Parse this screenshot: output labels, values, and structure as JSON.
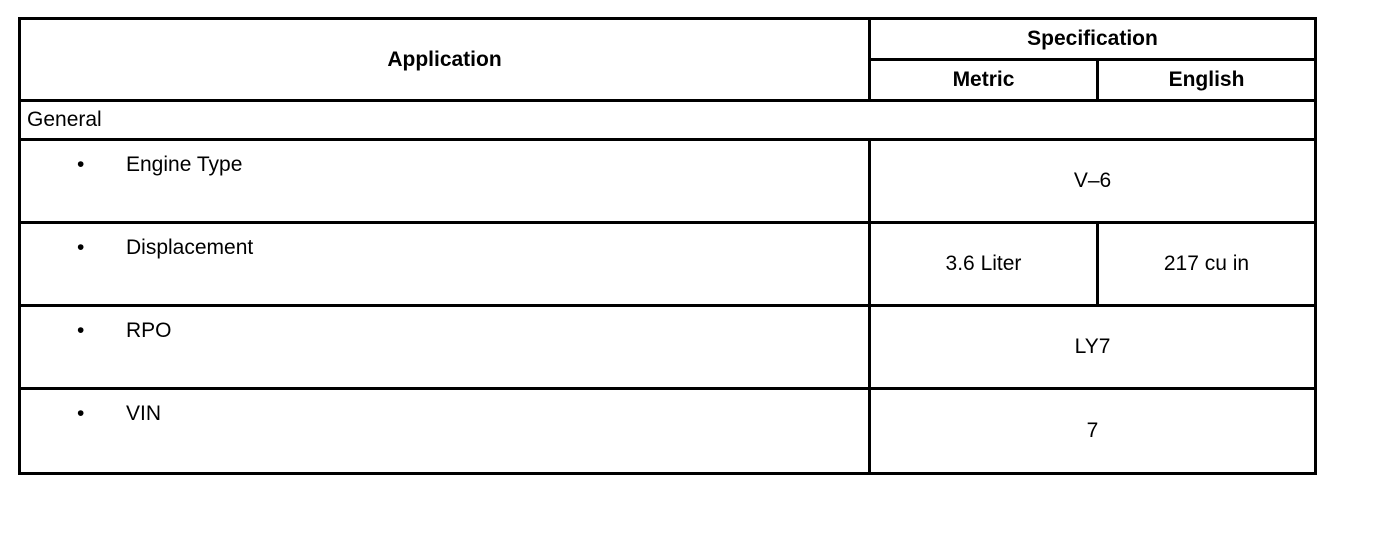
{
  "header": {
    "application": "Application",
    "specification": "Specification",
    "metric": "Metric",
    "english": "English"
  },
  "section": "General",
  "bullet": "•",
  "rows": [
    {
      "label": "Engine Type",
      "value": "V–6"
    },
    {
      "label": "Displacement",
      "metric": "3.6 Liter",
      "english": "217 cu in"
    },
    {
      "label": "RPO",
      "value": "LY7"
    },
    {
      "label": "VIN",
      "value": "7"
    }
  ]
}
